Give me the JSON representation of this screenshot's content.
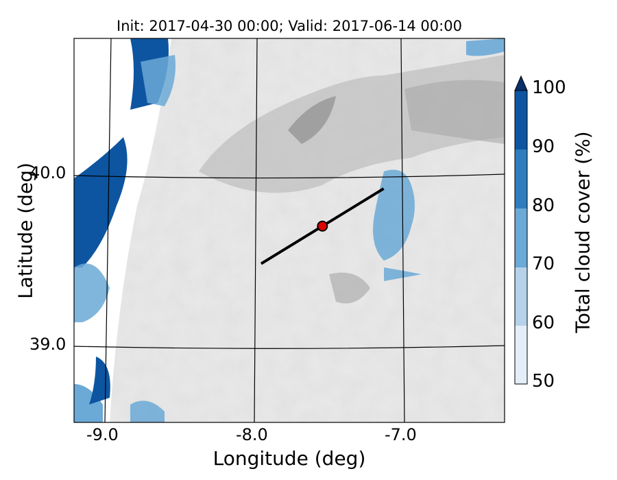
{
  "title": "Init: 2017-04-30 00:00; Valid: 2017-06-14 00:00",
  "xlabel": "Longitude (deg)",
  "ylabel": "Latitude (deg)",
  "x_ticks": [
    "-9.0",
    "-8.0",
    "-7.0"
  ],
  "y_ticks": [
    "40.0",
    "39.0"
  ],
  "colorbar": {
    "label": "Total cloud cover (%)",
    "ticks": [
      "50",
      "60",
      "70",
      "80",
      "90",
      "100"
    ],
    "colors": [
      "#e3eef8",
      "#b5d2ea",
      "#6ba9d6",
      "#2f7dbd",
      "#0d55a0",
      "#08306b"
    ]
  },
  "chart_data": {
    "type": "map",
    "title": "Init: 2017-04-30 00:00; Valid: 2017-06-14 00:00",
    "xlabel": "Longitude (deg)",
    "ylabel": "Latitude (deg)",
    "xlim": [
      -9.25,
      -6.65
    ],
    "ylim": [
      38.55,
      40.8
    ],
    "colorbar_range": [
      50,
      100
    ],
    "colorbar_extend": "max",
    "point": {
      "lon": -7.75,
      "lat": 39.7,
      "color": "#e00000"
    },
    "transect": {
      "start": {
        "lon": -8.12,
        "lat": 39.48
      },
      "end": {
        "lon": -7.38,
        "lat": 39.92
      }
    }
  }
}
